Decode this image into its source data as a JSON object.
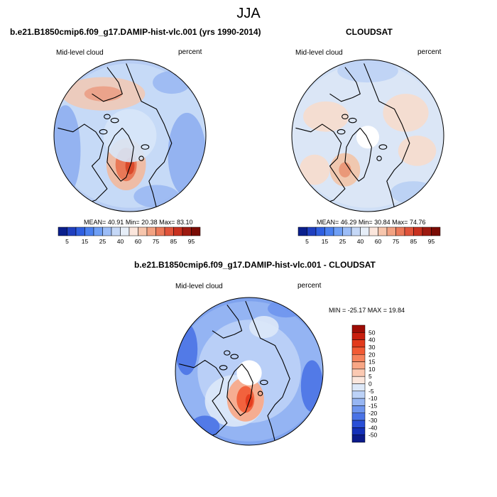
{
  "season": "JJA",
  "panels": [
    {
      "title": "b.e21.B1850cmip6.f09_g17.DAMIP-hist-vlc.001 (yrs 1990-2014)",
      "left_label": "Mid-level cloud",
      "right_label": "percent",
      "stats": {
        "mean": "40.91",
        "min": "20.38",
        "max": "83.10"
      }
    },
    {
      "title": "CLOUDSAT",
      "left_label": "Mid-level cloud",
      "right_label": "percent",
      "stats": {
        "mean": "46.29",
        "min": "30.84",
        "max": "74.76"
      }
    },
    {
      "title": "b.e21.B1850cmip6.f09_g17.DAMIP-hist-vlc.001 - CLOUDSAT",
      "left_label": "Mid-level cloud",
      "right_label": "percent",
      "minmax": "MIN = -25.17  MAX = 19.84"
    }
  ],
  "stat_labels": {
    "mean": "MEAN=",
    "min": "Min=",
    "max": "Max="
  },
  "colorbar_abs": {
    "ticks": [
      "5",
      "15",
      "25",
      "40",
      "60",
      "75",
      "85",
      "95"
    ],
    "colors": [
      "#0a1f8c",
      "#1f3fbf",
      "#2f5fe0",
      "#4a80ef",
      "#6f9ff5",
      "#9cbdf7",
      "#c5d8f7",
      "#e6eef8",
      "#fbe6dc",
      "#f7c6ad",
      "#f2a282",
      "#eb7a5a",
      "#e0533a",
      "#c8301f",
      "#9e1a10",
      "#7a0c05"
    ]
  },
  "colorbar_diff": {
    "labels": [
      "50",
      "40",
      "30",
      "20",
      "15",
      "10",
      "5",
      "0",
      "-5",
      "-10",
      "-15",
      "-20",
      "-30",
      "-40",
      "-50"
    ],
    "colors": [
      "#9e0c05",
      "#c81e0e",
      "#e23a1c",
      "#f25a34",
      "#f6825c",
      "#f8a685",
      "#fbc9b2",
      "#fbe6dc",
      "#dde8f8",
      "#bcd2f7",
      "#97b6f3",
      "#6e95ee",
      "#4a73e6",
      "#2a4fd6",
      "#1430b8",
      "#0b1a8a"
    ]
  }
}
